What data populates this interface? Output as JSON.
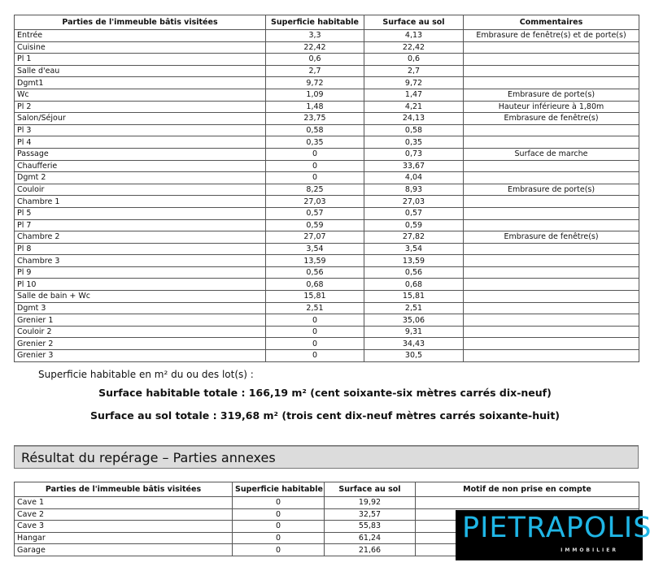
{
  "main_table": {
    "headers": [
      "Parties de l'immeuble bâtis visitées",
      "Superficie habitable",
      "Surface au sol",
      "Commentaires"
    ],
    "rows": [
      [
        "Entrée",
        "3,3",
        "4,13",
        "Embrasure de fenêtre(s) et de porte(s)"
      ],
      [
        "Cuisine",
        "22,42",
        "22,42",
        ""
      ],
      [
        "Pl 1",
        "0,6",
        "0,6",
        ""
      ],
      [
        "Salle d'eau",
        "2,7",
        "2,7",
        ""
      ],
      [
        "Dgmt1",
        "9,72",
        "9,72",
        ""
      ],
      [
        "Wc",
        "1,09",
        "1,47",
        "Embrasure de porte(s)"
      ],
      [
        "Pl 2",
        "1,48",
        "4,21",
        "Hauteur inférieure à 1,80m"
      ],
      [
        "Salon/Séjour",
        "23,75",
        "24,13",
        "Embrasure de fenêtre(s)"
      ],
      [
        "Pl 3",
        "0,58",
        "0,58",
        ""
      ],
      [
        "Pl 4",
        "0,35",
        "0,35",
        ""
      ],
      [
        "Passage",
        "0",
        "0,73",
        "Surface de marche"
      ],
      [
        "Chaufferie",
        "0",
        "33,67",
        ""
      ],
      [
        "Dgmt 2",
        "0",
        "4,04",
        ""
      ],
      [
        "Couloir",
        "8,25",
        "8,93",
        "Embrasure de porte(s)"
      ],
      [
        "Chambre 1",
        "27,03",
        "27,03",
        ""
      ],
      [
        "Pl 5",
        "0,57",
        "0,57",
        ""
      ],
      [
        "Pl 7",
        "0,59",
        "0,59",
        ""
      ],
      [
        "Chambre 2",
        "27,07",
        "27,82",
        "Embrasure de fenêtre(s)"
      ],
      [
        "Pl 8",
        "3,54",
        "3,54",
        ""
      ],
      [
        "Chambre 3",
        "13,59",
        "13,59",
        ""
      ],
      [
        "Pl 9",
        "0,56",
        "0,56",
        ""
      ],
      [
        "Pl 10",
        "0,68",
        "0,68",
        ""
      ],
      [
        "Salle de bain + Wc",
        "15,81",
        "15,81",
        ""
      ],
      [
        "Dgmt 3",
        "2,51",
        "2,51",
        ""
      ],
      [
        "Grenier 1",
        "0",
        "35,06",
        ""
      ],
      [
        "Couloir 2",
        "0",
        "9,31",
        ""
      ],
      [
        "Grenier 2",
        "0",
        "34,43",
        ""
      ],
      [
        "Grenier 3",
        "0",
        "30,5",
        ""
      ]
    ]
  },
  "summary": {
    "intro": "Superficie habitable en m² du ou des lot(s) :",
    "habitable_total": "Surface habitable totale : 166,19 m² (cent soixante-six mètres carrés dix-neuf)",
    "sol_total": "Surface au sol totale : 319,68 m² (trois cent dix-neuf mètres carrés soixante-huit)"
  },
  "section_title": "Résultat du repérage – Parties annexes",
  "annex_table": {
    "headers": [
      "Parties de l'immeuble bâtis visitées",
      "Superficie habitable",
      "Surface au sol",
      "Motif de non prise en compte"
    ],
    "rows": [
      [
        "Cave 1",
        "0",
        "19,92",
        ""
      ],
      [
        "Cave 2",
        "0",
        "32,57",
        ""
      ],
      [
        "Cave 3",
        "0",
        "55,83",
        ""
      ],
      [
        "Hangar",
        "0",
        "61,24",
        ""
      ],
      [
        "Garage",
        "0",
        "21,66",
        ""
      ]
    ]
  },
  "logo": {
    "name": "PIETRAPOLIS",
    "subtitle": "IMMOBILIER",
    "color": "#1fb6e6"
  }
}
